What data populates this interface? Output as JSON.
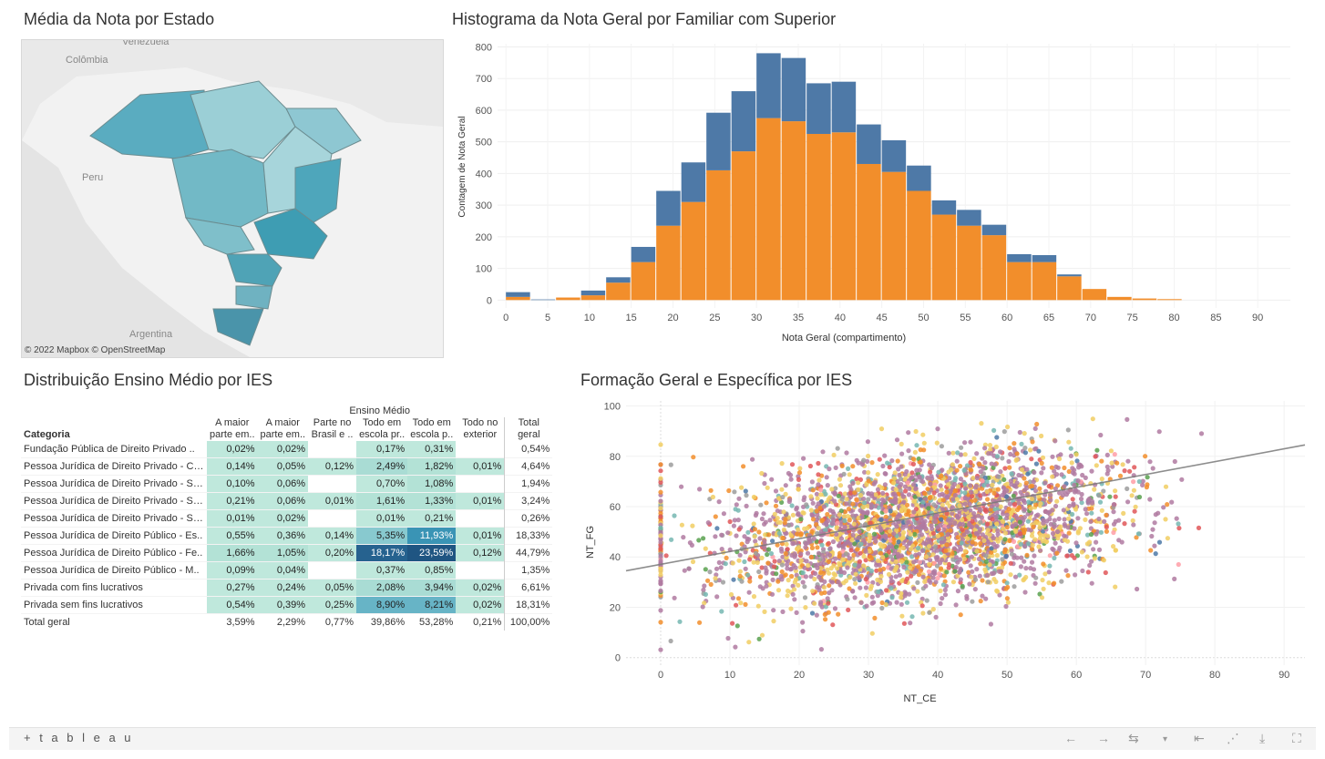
{
  "map": {
    "title": "Média da Nota por Estado",
    "attribution": "© 2022 Mapbox © OpenStreetMap",
    "labels": [
      "Colômbia",
      "Venezuela",
      "Peru",
      "Argentina"
    ]
  },
  "histogram": {
    "title": "Histograma da Nota Geral por Familiar com Superior",
    "colors": [
      "#f28e2b",
      "#4e79a7"
    ]
  },
  "crosstab": {
    "title": "Distribuição Ensino Médio por IES",
    "group_header": "Ensino Médio",
    "row_header": "Categoria",
    "columns": [
      [
        "A maior",
        "parte em.."
      ],
      [
        "A maior",
        "parte em.."
      ],
      [
        "Parte no",
        "Brasil e .."
      ],
      [
        "Todo em",
        "escola pr.."
      ],
      [
        "Todo em",
        "escola p.."
      ],
      [
        "Todo no",
        "exterior"
      ],
      [
        "Total",
        "geral"
      ]
    ],
    "rows": [
      {
        "label": "Fundação Pública de Direito Privado ..",
        "cells": [
          "0,02%",
          "0,02%",
          "",
          "0,17%",
          "0,31%",
          "",
          "0,54%"
        ]
      },
      {
        "label": "Pessoa Jurídica de Direito Privado - Co..",
        "cells": [
          "0,14%",
          "0,05%",
          "0,12%",
          "2,49%",
          "1,82%",
          "0,01%",
          "4,64%"
        ]
      },
      {
        "label": "Pessoa Jurídica de Direito Privado - Se..",
        "cells": [
          "0,10%",
          "0,06%",
          "",
          "0,70%",
          "1,08%",
          "",
          "1,94%"
        ]
      },
      {
        "label": "Pessoa Jurídica de Direito Privado - Se..",
        "cells": [
          "0,21%",
          "0,06%",
          "0,01%",
          "1,61%",
          "1,33%",
          "0,01%",
          "3,24%"
        ]
      },
      {
        "label": "Pessoa Jurídica de Direito Privado - Se..",
        "cells": [
          "0,01%",
          "0,02%",
          "",
          "0,01%",
          "0,21%",
          "",
          "0,26%"
        ]
      },
      {
        "label": "Pessoa Jurídica de Direito Público - Es..",
        "cells": [
          "0,55%",
          "0,36%",
          "0,14%",
          "5,35%",
          "11,93%",
          "0,01%",
          "18,33%"
        ]
      },
      {
        "label": "Pessoa Jurídica de Direito Público - Fe..",
        "cells": [
          "1,66%",
          "1,05%",
          "0,20%",
          "18,17%",
          "23,59%",
          "0,12%",
          "44,79%"
        ]
      },
      {
        "label": "Pessoa Jurídica de Direito Público - M..",
        "cells": [
          "0,09%",
          "0,04%",
          "",
          "0,37%",
          "0,85%",
          "",
          "1,35%"
        ]
      },
      {
        "label": "Privada com fins lucrativos",
        "cells": [
          "0,27%",
          "0,24%",
          "0,05%",
          "2,08%",
          "3,94%",
          "0,02%",
          "6,61%"
        ]
      },
      {
        "label": "Privada sem fins lucrativos",
        "cells": [
          "0,54%",
          "0,39%",
          "0,25%",
          "8,90%",
          "8,21%",
          "0,02%",
          "18,31%"
        ]
      }
    ],
    "total": {
      "label": "Total geral",
      "cells": [
        "3,59%",
        "2,29%",
        "0,77%",
        "39,86%",
        "53,28%",
        "0,21%",
        "100,00%"
      ]
    }
  },
  "scatter": {
    "title": "Formação Geral e Específica por IES",
    "colors": [
      "#b07aa1",
      "#f1ce63",
      "#f28e2b",
      "#e15759",
      "#76b7b2",
      "#59a14f",
      "#9c9c9c",
      "#4e79a7",
      "#ff9da7"
    ]
  },
  "footer": {
    "logo": "+ t a b l e a u"
  },
  "chart_data": [
    {
      "type": "bar",
      "title": "Histograma da Nota Geral por Familiar com Superior",
      "xlabel": "Nota Geral (compartimento)",
      "ylabel": "Contagem de Nota Geral",
      "bin_width": 3,
      "x_ticks": [
        0,
        5,
        10,
        15,
        20,
        25,
        30,
        35,
        40,
        45,
        50,
        55,
        60,
        65,
        70,
        75,
        80,
        85,
        90,
        95
      ],
      "y_ticks": [
        0,
        100,
        200,
        300,
        400,
        500,
        600,
        700,
        800
      ],
      "xlim": [
        -1,
        95
      ],
      "ylim": [
        -25,
        810
      ],
      "categories": [
        0,
        3,
        6,
        9,
        12,
        15,
        18,
        21,
        24,
        27,
        30,
        33,
        36,
        39,
        42,
        45,
        48,
        51,
        54,
        57,
        60,
        63,
        66,
        69,
        72,
        75,
        78,
        81,
        84,
        87,
        90,
        93
      ],
      "stacked": true,
      "series": [
        {
          "values": [
            10,
            0,
            8,
            15,
            55,
            120,
            235,
            310,
            410,
            470,
            575,
            565,
            525,
            530,
            430,
            405,
            345,
            270,
            235,
            205,
            120,
            120,
            75,
            35,
            10,
            5,
            3,
            0,
            0,
            0,
            0,
            0
          ]
        },
        {
          "values": [
            15,
            2,
            0,
            15,
            17,
            48,
            110,
            125,
            182,
            190,
            205,
            200,
            160,
            160,
            125,
            100,
            80,
            45,
            50,
            33,
            25,
            22,
            6,
            0,
            0,
            0,
            0,
            0,
            0,
            0,
            0,
            0
          ]
        }
      ]
    },
    {
      "type": "scatter",
      "title": "Formação Geral e Específica por IES",
      "xlabel": "NT_CE",
      "ylabel": "NT_FG",
      "x_ticks": [
        0,
        10,
        20,
        30,
        40,
        50,
        60,
        70,
        80,
        90
      ],
      "y_ticks": [
        0,
        20,
        40,
        60,
        80,
        100
      ],
      "xlim": [
        -5,
        93
      ],
      "ylim": [
        -3,
        102
      ],
      "trend_line": {
        "x": [
          -5,
          93
        ],
        "y": [
          34.5,
          84.5
        ]
      },
      "point_count": 3500,
      "x_center": 38,
      "y_center": 52
    }
  ]
}
